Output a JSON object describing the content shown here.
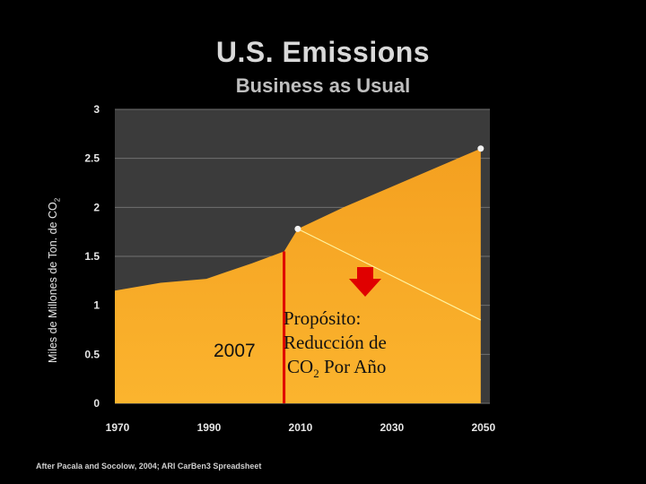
{
  "title": "U.S. Emissions",
  "subtitle": "Business as Usual",
  "source": "After Pacala and Socolow, 2004; ARI CarBen3 Spreadsheet",
  "ylabel_main": "Miles de Millones de Ton.  de CO",
  "ylabel_sub": "2",
  "year_marker": "2007",
  "goal": {
    "line1": "Propósito:",
    "line2": "Reducción de",
    "line3_pre": "CO",
    "line3_sub": "2",
    "line3_post": " Por Año"
  },
  "colors": {
    "area_top": "#f4a020",
    "area_bottom": "#fbb42e",
    "plot_bg": "#3b3b3b",
    "marker_line": "#e00000",
    "arrow": "#e00000",
    "reduction_line": "#fff3a0"
  },
  "chart_data": {
    "type": "area",
    "title": "U.S. Emissions",
    "subtitle": "Business as Usual",
    "xlabel": "",
    "ylabel": "Miles de Millones de Ton. de CO2",
    "xlim": [
      1970,
      2052
    ],
    "ylim": [
      0,
      3
    ],
    "x_ticks": [
      1970,
      1990,
      2010,
      2030,
      2050
    ],
    "y_ticks": [
      0,
      0.5,
      1,
      1.5,
      2,
      2.5,
      3
    ],
    "y_tick_labels": [
      "0",
      "0.5",
      "1",
      "1.5",
      "2",
      "2.5",
      "3"
    ],
    "grid": true,
    "series": [
      {
        "name": "Business as Usual",
        "x": [
          1970,
          1980,
          1990,
          2000,
          2007,
          2010,
          2020,
          2030,
          2040,
          2050
        ],
        "values": [
          1.15,
          1.23,
          1.27,
          1.43,
          1.55,
          1.78,
          2.0,
          2.2,
          2.4,
          2.6
        ]
      }
    ],
    "projection_points": [
      {
        "x": 2010,
        "y": 1.78
      },
      {
        "x": 2050,
        "y": 2.6
      }
    ],
    "reduction_line": {
      "x": [
        2010,
        2050
      ],
      "y": [
        1.78,
        0.85
      ]
    },
    "marker_year": 2007
  }
}
